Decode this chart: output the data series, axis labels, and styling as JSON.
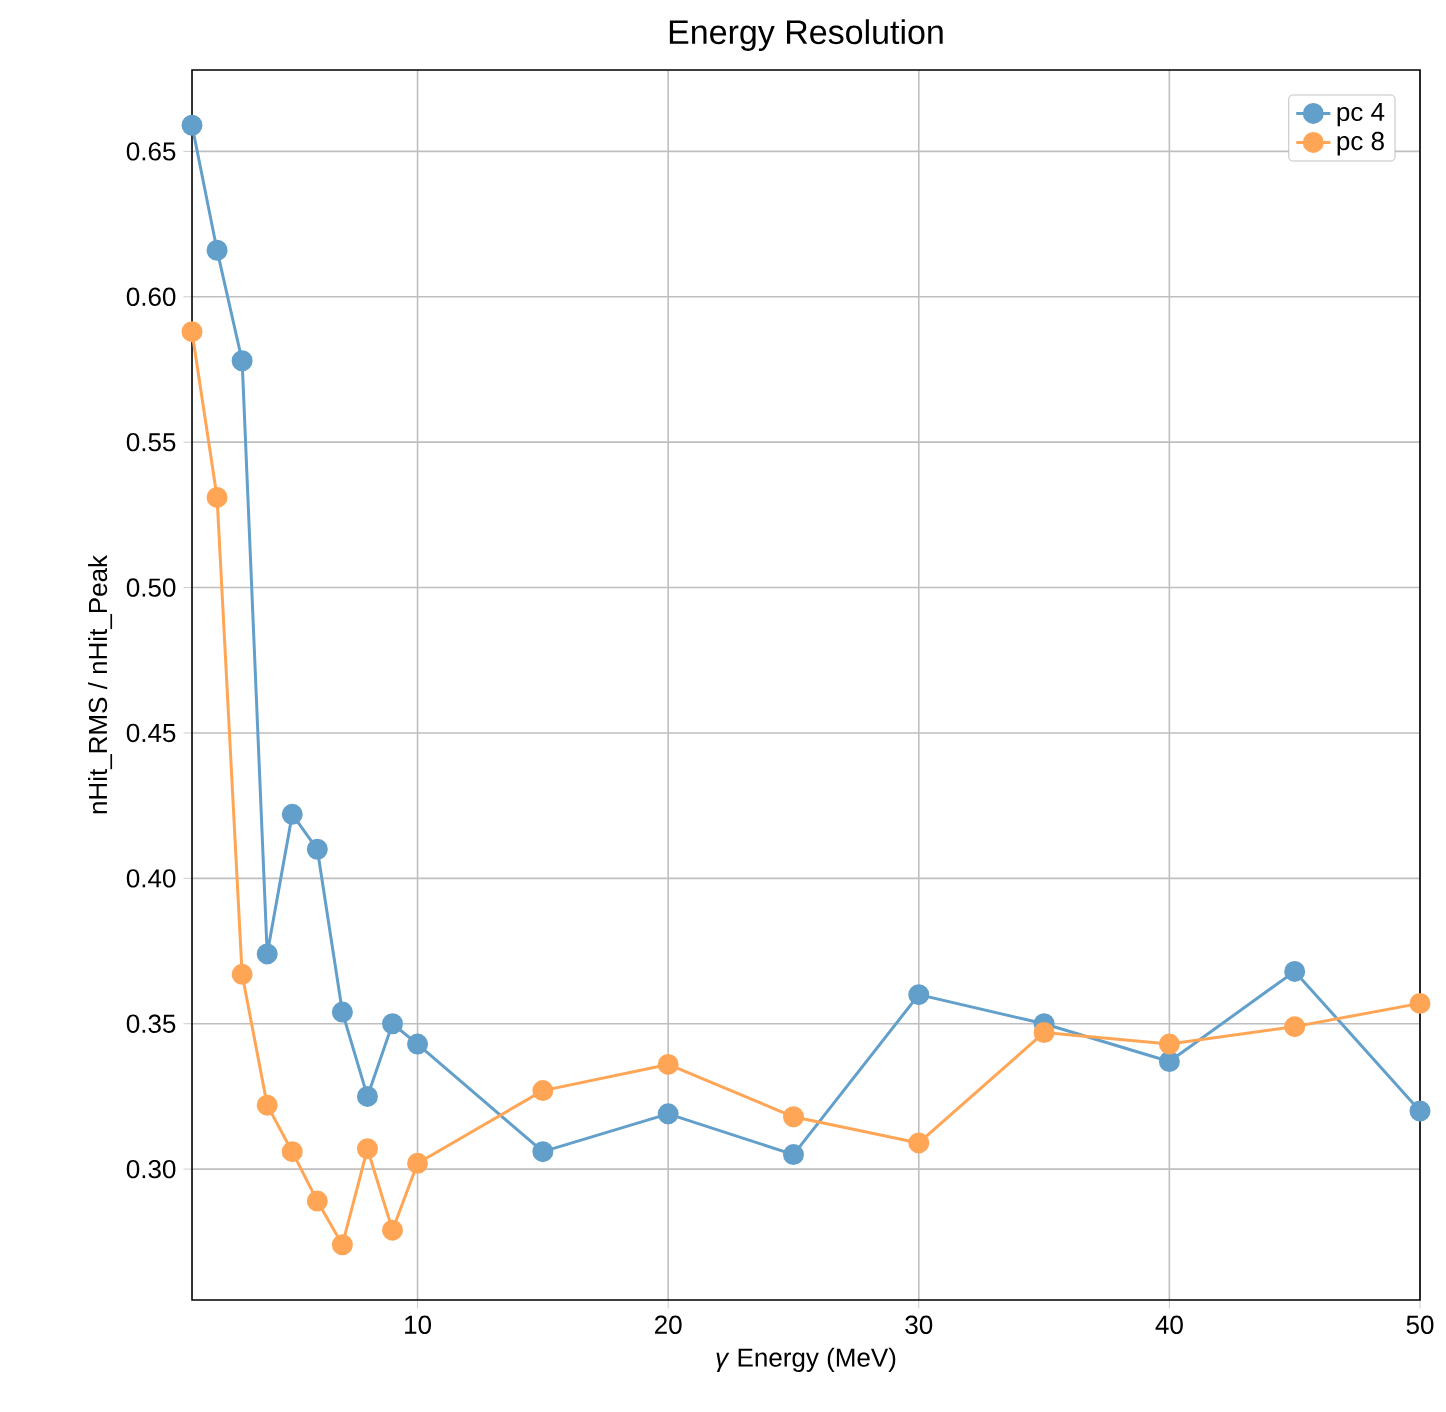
{
  "chart_data": {
    "type": "line",
    "title": "Energy Resolution",
    "xlabel": "*γ* Energy (MeV)",
    "ylabel": "nHit_RMS / nHit_Peak",
    "x": [
      1,
      2,
      3,
      4,
      5,
      6,
      7,
      8,
      9,
      10,
      15,
      20,
      25,
      30,
      35,
      40,
      45,
      50
    ],
    "series": [
      {
        "name": "pc 4",
        "color": "#629fca",
        "values": [
          0.659,
          0.616,
          0.578,
          0.374,
          0.422,
          0.41,
          0.354,
          0.325,
          0.35,
          0.343,
          0.306,
          0.319,
          0.305,
          0.36,
          0.35,
          0.337,
          0.368,
          0.32
        ]
      },
      {
        "name": "pc 8",
        "color": "#ffa556",
        "values": [
          0.588,
          0.531,
          0.367,
          0.322,
          0.306,
          0.289,
          0.274,
          0.307,
          0.279,
          0.302,
          0.327,
          0.336,
          0.318,
          0.309,
          0.347,
          0.343,
          0.349,
          0.357
        ]
      }
    ],
    "xlim": [
      1,
      50
    ],
    "ylim": [
      0.255,
      0.678
    ],
    "xticks": [
      10,
      20,
      30,
      40,
      50
    ],
    "yticks": [
      {
        "value": 0.3,
        "label": "0.30"
      },
      {
        "value": 0.35,
        "label": "0.35"
      },
      {
        "value": 0.4,
        "label": "0.40"
      },
      {
        "value": 0.45,
        "label": "0.45"
      },
      {
        "value": 0.5,
        "label": "0.50"
      },
      {
        "value": 0.55,
        "label": "0.55"
      },
      {
        "value": 0.6,
        "label": "0.60"
      },
      {
        "value": 0.65,
        "label": "0.65"
      }
    ],
    "grid": true,
    "legend": "top right",
    "marker": "circle",
    "line_style": "solid"
  }
}
